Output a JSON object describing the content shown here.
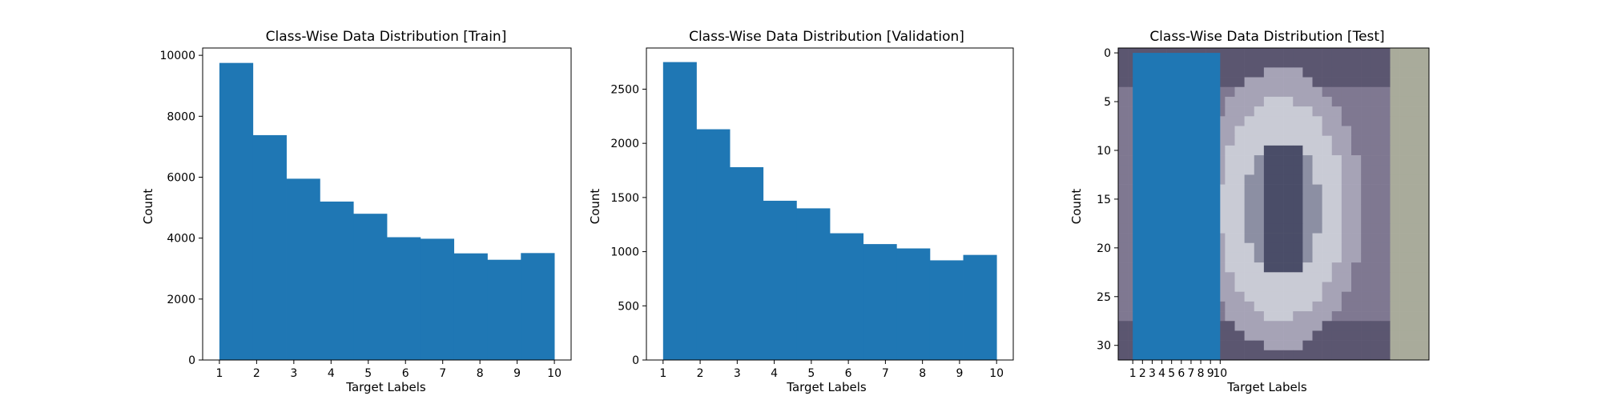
{
  "chart_data": [
    {
      "type": "bar",
      "title": "Class-Wise Data Distribution [Train]",
      "xlabel": "Target Labels",
      "ylabel": "Count",
      "bin_edges": [
        1.0,
        1.9,
        2.8,
        3.7,
        4.6,
        5.5,
        6.4,
        7.3,
        8.2,
        9.1,
        10.0
      ],
      "values": [
        9750,
        7380,
        5950,
        5200,
        4800,
        4030,
        3980,
        3500,
        3290,
        3510
      ],
      "xlim": [
        0.55,
        10.45
      ],
      "ylim": [
        0,
        10240
      ],
      "xticks": [
        1,
        2,
        3,
        4,
        5,
        6,
        7,
        8,
        9,
        10
      ],
      "yticks": [
        0,
        2000,
        4000,
        6000,
        8000,
        10000
      ],
      "grid": false,
      "color": "#1f77b4"
    },
    {
      "type": "bar",
      "title": "Class-Wise Data Distribution [Validation]",
      "xlabel": "Target Labels",
      "ylabel": "Count",
      "bin_edges": [
        1.0,
        1.9,
        2.8,
        3.7,
        4.6,
        5.5,
        6.4,
        7.3,
        8.2,
        9.1,
        10.0
      ],
      "values": [
        2750,
        2130,
        1780,
        1470,
        1400,
        1170,
        1070,
        1030,
        920,
        970
      ],
      "xlim": [
        0.55,
        10.45
      ],
      "ylim": [
        0,
        2880
      ],
      "xticks": [
        1,
        2,
        3,
        4,
        5,
        6,
        7,
        8,
        9,
        10
      ],
      "yticks": [
        0,
        500,
        1000,
        1500,
        2000,
        2500
      ],
      "grid": false,
      "color": "#1f77b4"
    },
    {
      "type": "bar",
      "title": "Class-Wise Data Distribution [Test]",
      "xlabel": "Target Labels",
      "ylabel": "Count",
      "bin_edges": [
        1.0,
        1.9,
        2.8,
        3.7,
        4.6,
        5.5,
        6.4,
        7.3,
        8.2,
        9.1,
        10.0
      ],
      "xlim": [
        -0.5,
        31.5
      ],
      "ylim": [
        31.5,
        -0.5
      ],
      "xticks": [
        1,
        2,
        3,
        4,
        5,
        6,
        7,
        8,
        9,
        10
      ],
      "yticks": [
        0,
        5,
        10,
        15,
        20,
        25,
        30
      ],
      "background_image": "house-number-digit-0",
      "grid": false,
      "color": "#1f77b4"
    }
  ]
}
